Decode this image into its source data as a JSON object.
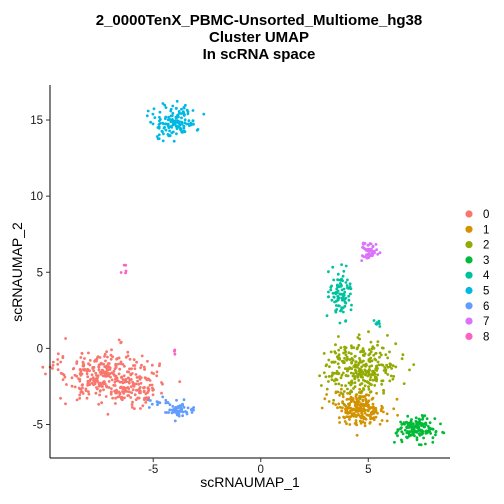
{
  "chart_data": {
    "type": "scatter",
    "title": [
      "2_0000TenX_PBMC-Unsorted_Multiome_hg38",
      "Cluster UMAP",
      "In scRNA space"
    ],
    "xlabel": "scRNAUMAP_1",
    "ylabel": "scRNAUMAP_2",
    "xlim": [
      -9.8,
      8.8
    ],
    "ylim": [
      -7.2,
      17.3
    ],
    "x_ticks": [
      -5,
      0,
      5
    ],
    "y_ticks": [
      -5,
      0,
      5,
      10,
      15
    ],
    "tick_labels_x": [
      "-5",
      "0",
      "5"
    ],
    "tick_labels_y": [
      "-5",
      "0",
      "5",
      "10",
      "15"
    ],
    "grid": false,
    "legend_position": "right",
    "series": [
      {
        "name": "0",
        "color": "#F8766D",
        "clusters": [
          {
            "cx": -7.2,
            "cy": -1.8,
            "sx": 1.05,
            "sy": 0.9,
            "n": 330,
            "rot": -18
          },
          {
            "cx": -5.6,
            "cy": -2.6,
            "sx": 0.55,
            "sy": 0.6,
            "n": 70,
            "rot": -30
          }
        ]
      },
      {
        "name": "1",
        "color": "#D39200",
        "clusters": [
          {
            "cx": 4.6,
            "cy": -3.9,
            "sx": 0.6,
            "sy": 0.55,
            "n": 230,
            "rot": 0
          }
        ]
      },
      {
        "name": "2",
        "color": "#93AA00",
        "clusters": [
          {
            "cx": 4.7,
            "cy": -1.3,
            "sx": 0.85,
            "sy": 0.85,
            "n": 300,
            "rot": 0
          }
        ]
      },
      {
        "name": "3",
        "color": "#00BA38",
        "clusters": [
          {
            "cx": 7.2,
            "cy": -5.3,
            "sx": 0.45,
            "sy": 0.38,
            "n": 150,
            "rot": 0
          }
        ]
      },
      {
        "name": "4",
        "color": "#00C19F",
        "clusters": [
          {
            "cx": 3.7,
            "cy": 3.6,
            "sx": 0.25,
            "sy": 0.85,
            "n": 95,
            "rot": 0
          },
          {
            "cx": 5.4,
            "cy": 1.7,
            "sx": 0.12,
            "sy": 0.2,
            "n": 8,
            "rot": 0
          }
        ]
      },
      {
        "name": "5",
        "color": "#00B9E3",
        "clusters": [
          {
            "cx": -4.0,
            "cy": 14.9,
            "sx": 0.55,
            "sy": 0.5,
            "n": 140,
            "rot": 20
          }
        ]
      },
      {
        "name": "6",
        "color": "#619CFF",
        "clusters": [
          {
            "cx": -3.8,
            "cy": -4.1,
            "sx": 0.35,
            "sy": 0.22,
            "n": 55,
            "rot": 0
          },
          {
            "cx": -4.6,
            "cy": -3.6,
            "sx": 0.3,
            "sy": 0.2,
            "n": 15,
            "rot": 0
          }
        ]
      },
      {
        "name": "7",
        "color": "#DB72FB",
        "clusters": [
          {
            "cx": 5.0,
            "cy": 6.4,
            "sx": 0.22,
            "sy": 0.3,
            "n": 45,
            "rot": 0
          }
        ]
      },
      {
        "name": "8",
        "color": "#FF61C3",
        "clusters": [
          {
            "cx": -6.3,
            "cy": 5.2,
            "sx": 0.12,
            "sy": 0.2,
            "n": 5,
            "rot": 0
          },
          {
            "cx": -4.0,
            "cy": -0.2,
            "sx": 0.08,
            "sy": 0.08,
            "n": 4,
            "rot": 0
          }
        ]
      }
    ]
  }
}
